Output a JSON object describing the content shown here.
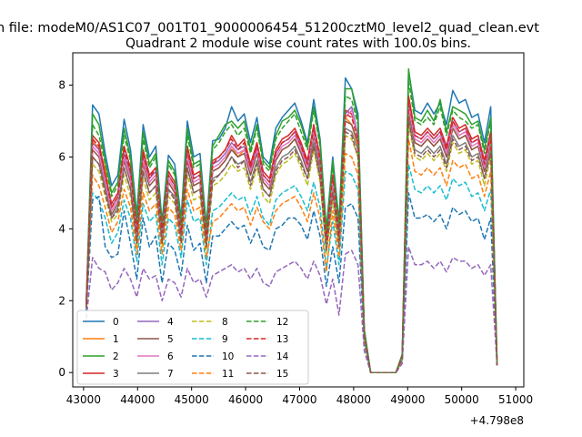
{
  "figure": {
    "suptitle": "n file: modeM0/AS1C07_001T01_9000006454_51200cztM0_level2_quad_clean.evt",
    "title": "Quadrant 2 module wise count rates with 100.0s bins.",
    "offset_label": "+4.798e8"
  },
  "chart_data": {
    "type": "line",
    "title": "Quadrant 2 module wise count rates with 100.0s bins.",
    "xlabel": "",
    "ylabel": "",
    "x_offset": 479800000,
    "xlim": [
      42800,
      51150
    ],
    "ylim": [
      -0.4,
      8.9
    ],
    "x_ticks": [
      43000,
      44000,
      45000,
      46000,
      47000,
      48000,
      49000,
      50000,
      51000
    ],
    "y_ticks": [
      0,
      2,
      4,
      6,
      8
    ],
    "grid": false,
    "legend_position": "lower-left",
    "legend_columns": 4,
    "series": [
      {
        "name": "0",
        "color": "#1f77b4",
        "dash": "solid",
        "values": [
          2.0,
          7.45,
          7.2,
          6.1,
          5.2,
          5.5,
          7.05,
          6.2,
          4.4,
          6.9,
          6.0,
          6.3,
          4.2,
          6.05,
          5.8,
          4.3,
          7.0,
          6.0,
          6.1,
          4.1,
          6.45,
          6.5,
          6.8,
          7.4,
          7.0,
          7.2,
          6.4,
          7.1,
          6.0,
          5.8,
          6.8,
          7.1,
          7.3,
          7.5,
          7.0,
          6.4,
          7.6,
          6.5,
          4.0,
          6.0,
          4.2,
          8.2,
          7.9,
          7.2,
          1.2,
          0.0,
          0.0,
          0.0,
          0.0,
          0.0,
          0.5,
          8.4,
          7.3,
          7.2,
          7.5,
          7.2,
          7.5,
          6.9,
          7.85,
          7.5,
          7.6,
          7.1,
          7.2,
          6.4,
          7.4,
          0.25
        ]
      },
      {
        "name": "1",
        "color": "#ff7f0e",
        "dash": "solid",
        "values": [
          1.9,
          6.5,
          6.2,
          5.7,
          4.5,
          4.8,
          6.0,
          5.6,
          3.8,
          5.9,
          5.3,
          5.5,
          3.6,
          5.3,
          5.0,
          3.8,
          6.0,
          5.2,
          5.3,
          3.6,
          5.6,
          5.7,
          5.9,
          6.3,
          6.0,
          6.2,
          5.5,
          6.1,
          5.3,
          5.1,
          5.9,
          6.2,
          6.3,
          6.5,
          6.1,
          5.6,
          6.6,
          5.7,
          3.5,
          5.2,
          3.6,
          7.1,
          6.9,
          6.3,
          1.1,
          0.0,
          0.0,
          0.0,
          0.0,
          0.0,
          0.45,
          7.3,
          6.4,
          6.3,
          6.5,
          6.3,
          6.5,
          6.0,
          6.8,
          6.5,
          6.6,
          6.2,
          6.3,
          5.6,
          6.4,
          0.2
        ]
      },
      {
        "name": "2",
        "color": "#2ca02c",
        "dash": "solid",
        "values": [
          2.0,
          7.2,
          6.9,
          5.9,
          5.0,
          5.3,
          6.8,
          6.0,
          4.3,
          6.7,
          5.8,
          6.1,
          4.1,
          5.9,
          5.6,
          4.2,
          6.8,
          5.8,
          5.9,
          4.0,
          6.3,
          6.6,
          6.9,
          7.0,
          6.8,
          7.0,
          6.2,
          6.9,
          5.9,
          5.7,
          6.6,
          7.0,
          7.1,
          7.3,
          6.9,
          6.3,
          7.4,
          6.4,
          3.9,
          5.9,
          4.1,
          7.9,
          7.9,
          7.0,
          1.2,
          0.0,
          0.0,
          0.0,
          0.0,
          0.0,
          0.5,
          8.45,
          7.1,
          7.0,
          7.3,
          7.0,
          7.6,
          6.7,
          7.4,
          7.3,
          7.2,
          6.9,
          7.0,
          6.2,
          7.1,
          0.25
        ]
      },
      {
        "name": "3",
        "color": "#d62728",
        "dash": "solid",
        "values": [
          1.9,
          6.6,
          6.4,
          5.5,
          4.7,
          5.0,
          6.3,
          5.7,
          4.0,
          6.2,
          5.5,
          5.7,
          3.9,
          5.6,
          5.3,
          4.0,
          6.3,
          5.5,
          5.6,
          3.8,
          5.9,
          6.0,
          6.2,
          6.6,
          6.3,
          6.5,
          5.8,
          6.4,
          5.6,
          5.4,
          6.2,
          6.5,
          6.6,
          6.8,
          6.4,
          5.9,
          6.9,
          6.0,
          3.7,
          5.5,
          3.9,
          7.3,
          7.2,
          6.6,
          1.1,
          0.0,
          0.0,
          0.0,
          0.0,
          0.0,
          0.45,
          7.7,
          6.7,
          6.6,
          6.8,
          6.6,
          6.8,
          6.3,
          7.1,
          6.8,
          6.9,
          6.5,
          6.6,
          5.9,
          6.7,
          0.2
        ]
      },
      {
        "name": "4",
        "color": "#9467bd",
        "dash": "solid",
        "values": [
          1.9,
          6.4,
          6.2,
          5.4,
          4.6,
          4.9,
          6.1,
          5.5,
          3.9,
          6.0,
          5.4,
          5.6,
          3.8,
          5.5,
          5.2,
          3.9,
          6.1,
          5.4,
          5.5,
          3.7,
          5.8,
          5.9,
          6.1,
          6.4,
          6.2,
          6.3,
          5.7,
          6.3,
          5.5,
          5.3,
          6.1,
          6.4,
          6.5,
          6.7,
          6.3,
          5.8,
          6.8,
          5.9,
          3.6,
          5.4,
          3.8,
          7.2,
          7.4,
          6.6,
          1.1,
          0.0,
          0.0,
          0.0,
          0.0,
          0.0,
          0.45,
          7.5,
          6.6,
          6.5,
          6.7,
          6.5,
          6.7,
          6.2,
          7.0,
          6.7,
          6.8,
          6.4,
          6.5,
          5.8,
          6.6,
          0.2
        ]
      },
      {
        "name": "5",
        "color": "#8c564b",
        "dash": "solid",
        "values": [
          1.8,
          6.2,
          6.0,
          5.2,
          4.4,
          4.7,
          5.9,
          5.3,
          3.7,
          5.8,
          5.2,
          5.4,
          3.7,
          5.3,
          5.0,
          3.8,
          5.9,
          5.2,
          5.3,
          3.6,
          5.6,
          5.7,
          5.9,
          6.2,
          6.0,
          6.1,
          5.5,
          6.1,
          5.3,
          5.1,
          5.9,
          6.2,
          6.3,
          6.5,
          6.1,
          5.6,
          6.6,
          5.7,
          3.5,
          5.2,
          3.7,
          7.0,
          6.9,
          6.4,
          1.0,
          0.0,
          0.0,
          0.0,
          0.0,
          0.0,
          0.4,
          7.3,
          6.4,
          6.3,
          6.5,
          6.3,
          6.5,
          6.0,
          6.8,
          6.5,
          6.6,
          6.2,
          6.3,
          5.6,
          6.4,
          0.2
        ]
      },
      {
        "name": "6",
        "color": "#e377c2",
        "dash": "solid",
        "values": [
          1.9,
          6.3,
          6.1,
          5.3,
          4.5,
          4.8,
          6.0,
          5.4,
          3.8,
          5.9,
          5.3,
          5.5,
          3.8,
          5.4,
          5.1,
          3.9,
          6.0,
          5.3,
          5.4,
          3.7,
          5.7,
          5.8,
          6.0,
          6.3,
          6.1,
          6.2,
          5.6,
          6.2,
          5.4,
          5.2,
          6.0,
          6.3,
          6.4,
          6.6,
          6.2,
          5.7,
          6.7,
          5.8,
          3.6,
          5.3,
          3.8,
          7.1,
          7.3,
          6.5,
          1.0,
          0.0,
          0.0,
          0.0,
          0.0,
          0.0,
          0.4,
          7.4,
          6.5,
          6.4,
          6.6,
          6.4,
          6.6,
          6.1,
          6.9,
          6.6,
          6.7,
          6.3,
          6.4,
          5.7,
          6.5,
          0.2
        ]
      },
      {
        "name": "7",
        "color": "#7f7f7f",
        "dash": "solid",
        "values": [
          1.8,
          6.0,
          5.8,
          5.1,
          4.3,
          4.6,
          5.7,
          5.1,
          3.6,
          5.6,
          5.0,
          5.2,
          3.6,
          5.1,
          4.9,
          3.7,
          5.7,
          5.0,
          5.1,
          3.5,
          5.4,
          5.5,
          5.7,
          6.0,
          5.8,
          5.9,
          5.3,
          5.9,
          5.1,
          4.9,
          5.7,
          6.0,
          6.1,
          6.3,
          5.9,
          5.4,
          6.4,
          5.5,
          3.4,
          5.0,
          3.6,
          6.8,
          6.7,
          6.2,
          1.0,
          0.0,
          0.0,
          0.0,
          0.0,
          0.0,
          0.4,
          7.1,
          6.2,
          6.1,
          6.3,
          6.1,
          6.3,
          5.8,
          6.6,
          6.3,
          6.4,
          6.0,
          6.1,
          5.4,
          6.2,
          0.2
        ]
      },
      {
        "name": "8",
        "color": "#bcbd22",
        "dash": "dashed",
        "values": [
          1.8,
          5.8,
          5.6,
          4.9,
          4.2,
          4.4,
          5.5,
          4.9,
          3.5,
          5.4,
          4.8,
          5.0,
          3.5,
          4.9,
          4.7,
          3.6,
          5.5,
          4.8,
          4.9,
          3.4,
          5.2,
          5.3,
          5.5,
          5.8,
          5.6,
          5.7,
          5.1,
          5.7,
          4.9,
          4.7,
          5.5,
          5.8,
          5.9,
          6.1,
          5.7,
          5.2,
          6.2,
          5.3,
          3.3,
          4.8,
          3.5,
          6.6,
          6.5,
          6.0,
          1.0,
          0.0,
          0.0,
          0.0,
          0.0,
          0.0,
          0.4,
          6.9,
          6.0,
          5.9,
          6.1,
          5.9,
          6.1,
          5.6,
          6.4,
          6.1,
          6.2,
          5.8,
          5.9,
          5.2,
          6.0,
          0.2
        ]
      },
      {
        "name": "9",
        "color": "#17becf",
        "dash": "dashed",
        "values": [
          1.7,
          5.0,
          4.8,
          4.3,
          3.6,
          3.9,
          4.8,
          4.3,
          3.1,
          4.7,
          4.2,
          4.4,
          3.0,
          4.3,
          4.1,
          3.2,
          4.8,
          4.2,
          4.3,
          3.0,
          4.5,
          4.6,
          4.8,
          5.0,
          4.8,
          4.9,
          4.4,
          4.9,
          4.3,
          4.1,
          4.8,
          5.0,
          5.1,
          5.2,
          4.9,
          4.5,
          5.3,
          4.6,
          2.9,
          4.2,
          3.0,
          5.6,
          5.5,
          5.1,
          0.9,
          0.0,
          0.0,
          0.0,
          0.0,
          0.0,
          0.35,
          5.8,
          5.1,
          5.0,
          5.2,
          5.0,
          5.2,
          4.8,
          5.4,
          5.2,
          5.3,
          4.9,
          5.0,
          4.5,
          5.1,
          0.2
        ]
      },
      {
        "name": "10",
        "color": "#1f77b4",
        "dash": "dashed",
        "values": [
          1.7,
          4.8,
          4.9,
          3.5,
          3.2,
          3.3,
          4.5,
          3.6,
          2.6,
          4.3,
          3.5,
          3.8,
          2.5,
          3.6,
          3.4,
          2.7,
          4.1,
          3.4,
          3.6,
          2.5,
          3.8,
          3.8,
          4.0,
          4.2,
          4.0,
          4.1,
          3.6,
          4.0,
          3.5,
          3.4,
          4.0,
          4.1,
          4.3,
          4.3,
          4.1,
          3.7,
          4.5,
          3.8,
          2.4,
          3.5,
          2.5,
          4.6,
          4.7,
          4.3,
          0.8,
          0.0,
          0.0,
          0.0,
          0.0,
          0.0,
          0.3,
          5.0,
          4.3,
          4.3,
          4.4,
          4.2,
          4.4,
          4.0,
          4.6,
          4.4,
          4.5,
          4.2,
          4.3,
          3.7,
          4.3,
          0.2
        ]
      },
      {
        "name": "11",
        "color": "#ff7f0e",
        "dash": "dashed",
        "values": [
          1.8,
          5.5,
          5.2,
          4.6,
          3.9,
          4.2,
          5.1,
          4.6,
          3.3,
          5.0,
          4.5,
          4.7,
          3.3,
          4.6,
          4.4,
          3.4,
          5.1,
          4.5,
          4.6,
          3.2,
          4.2,
          4.3,
          4.5,
          4.7,
          4.5,
          4.6,
          4.1,
          4.6,
          4.2,
          4.0,
          4.5,
          4.7,
          4.8,
          4.9,
          4.6,
          4.2,
          5.0,
          4.3,
          2.8,
          4.5,
          3.2,
          6.1,
          6.0,
          5.5,
          0.9,
          0.0,
          0.0,
          0.0,
          0.0,
          0.0,
          0.35,
          6.5,
          5.6,
          5.5,
          5.7,
          5.5,
          5.7,
          5.2,
          5.9,
          5.7,
          5.8,
          5.4,
          5.5,
          4.9,
          5.6,
          0.2
        ]
      },
      {
        "name": "12",
        "color": "#2ca02c",
        "dash": "dashed",
        "values": [
          1.9,
          6.9,
          6.6,
          5.8,
          4.9,
          5.2,
          6.6,
          5.9,
          4.2,
          6.5,
          5.7,
          6.0,
          4.0,
          5.8,
          5.5,
          4.1,
          6.6,
          5.7,
          5.8,
          3.9,
          6.2,
          6.4,
          6.7,
          6.9,
          6.6,
          6.8,
          6.1,
          6.8,
          5.8,
          5.6,
          6.5,
          6.8,
          7.0,
          7.2,
          6.7,
          6.2,
          7.3,
          6.3,
          3.8,
          5.8,
          4.0,
          7.7,
          7.6,
          6.9,
          1.1,
          0.0,
          0.0,
          0.0,
          0.0,
          0.0,
          0.5,
          8.1,
          7.0,
          6.9,
          7.1,
          6.9,
          7.4,
          6.6,
          7.3,
          7.1,
          7.0,
          6.8,
          6.9,
          6.1,
          7.0,
          0.25
        ]
      },
      {
        "name": "13",
        "color": "#d62728",
        "dash": "dashed",
        "values": [
          1.9,
          6.5,
          6.3,
          5.5,
          4.6,
          4.9,
          6.2,
          5.6,
          3.9,
          6.1,
          5.4,
          5.7,
          3.9,
          5.5,
          5.2,
          3.9,
          6.2,
          5.4,
          5.5,
          3.7,
          5.8,
          6.0,
          6.2,
          6.5,
          6.2,
          6.4,
          5.7,
          6.3,
          5.5,
          5.3,
          6.1,
          6.4,
          6.5,
          6.7,
          6.3,
          5.8,
          6.8,
          5.9,
          3.7,
          5.5,
          3.8,
          7.2,
          7.1,
          6.5,
          1.0,
          0.0,
          0.0,
          0.0,
          0.0,
          0.0,
          0.45,
          7.6,
          6.6,
          6.5,
          6.7,
          6.5,
          6.7,
          6.2,
          7.0,
          6.7,
          6.8,
          6.4,
          6.5,
          5.8,
          6.6,
          0.2
        ]
      },
      {
        "name": "14",
        "color": "#9467bd",
        "dash": "dashed",
        "values": [
          1.5,
          3.2,
          2.9,
          2.8,
          2.3,
          2.5,
          2.9,
          2.6,
          2.1,
          2.9,
          2.6,
          2.7,
          2.0,
          2.6,
          2.5,
          2.1,
          2.9,
          2.5,
          2.6,
          2.1,
          2.7,
          2.8,
          2.9,
          3.0,
          2.8,
          2.9,
          2.6,
          2.9,
          2.5,
          2.4,
          2.8,
          2.9,
          3.0,
          3.1,
          2.9,
          2.6,
          3.1,
          2.7,
          1.9,
          2.6,
          1.6,
          3.3,
          3.4,
          3.0,
          0.6,
          0.0,
          0.0,
          0.0,
          0.0,
          0.0,
          0.25,
          3.5,
          3.0,
          3.0,
          3.1,
          2.9,
          3.1,
          2.8,
          3.2,
          3.1,
          3.1,
          2.9,
          3.0,
          2.7,
          3.0,
          0.2
        ]
      },
      {
        "name": "15",
        "color": "#8c564b",
        "dash": "dashed",
        "values": [
          1.8,
          6.0,
          5.8,
          5.0,
          4.3,
          4.5,
          5.7,
          5.1,
          3.6,
          5.6,
          5.0,
          5.2,
          3.6,
          5.1,
          4.8,
          3.6,
          5.7,
          5.0,
          5.1,
          3.5,
          5.3,
          5.5,
          5.7,
          6.0,
          5.7,
          5.9,
          5.2,
          5.8,
          5.1,
          4.9,
          5.6,
          5.9,
          6.0,
          6.2,
          5.8,
          5.4,
          6.3,
          5.4,
          3.4,
          5.0,
          3.5,
          6.7,
          6.6,
          6.0,
          1.0,
          0.0,
          0.0,
          0.0,
          0.0,
          0.0,
          0.4,
          7.0,
          6.1,
          6.0,
          6.2,
          6.0,
          6.2,
          5.7,
          6.5,
          6.2,
          6.3,
          5.9,
          6.0,
          5.4,
          6.1,
          0.2
        ]
      }
    ],
    "x_start": 43050,
    "x_step": 117
  }
}
